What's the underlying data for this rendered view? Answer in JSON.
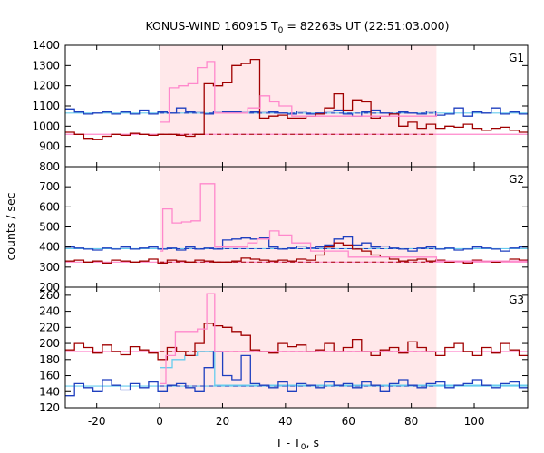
{
  "chart_data": {
    "type": "line",
    "title": {
      "prefix": "KONUS-WIND 160915 T",
      "sub": "0",
      "suffix": " = 82263s UT (22:51:03.000)"
    },
    "xlabel": {
      "prefix": "T - T",
      "sub": "0",
      "suffix": ", s"
    },
    "ylabel": "counts / sec",
    "xlim": [
      -30,
      117
    ],
    "xticks": [
      -20,
      0,
      20,
      40,
      60,
      80,
      100
    ],
    "shaded_interval": [
      0,
      88
    ],
    "colors": {
      "red": "#a00000",
      "blue": "#1f3fbf",
      "pink": "#ff88cc",
      "cyan": "#66ccee",
      "shade": "#ffe8ea"
    },
    "panels": [
      {
        "name": "G1",
        "ylim": [
          800,
          1400
        ],
        "yticks": [
          800,
          900,
          1000,
          1100,
          1200,
          1300,
          1400
        ],
        "bg_red": 960,
        "bg_blue": 1065,
        "bin": 2.944,
        "red": [
          970,
          960,
          940,
          935,
          950,
          960,
          955,
          965,
          960,
          955,
          960,
          960,
          955,
          950,
          960,
          1210,
          1200,
          1215,
          1300,
          1310,
          1330,
          1040,
          1050,
          1055,
          1040,
          1040,
          1050,
          1060,
          1090,
          1160,
          1080,
          1130,
          1120,
          1040,
          1050,
          1060,
          1000,
          1020,
          990,
          1010,
          990,
          1000,
          995,
          1010,
          990,
          980,
          990,
          995,
          980,
          970,
          975,
          985,
          990,
          970,
          965,
          975,
          980,
          990,
          985,
          980,
          960,
          975,
          970,
          980,
          990,
          950,
          980,
          975,
          990,
          985,
          980,
          990,
          1000,
          970,
          980,
          990,
          980,
          990,
          985,
          990
        ],
        "blue": [
          1085,
          1070,
          1060,
          1065,
          1070,
          1060,
          1070,
          1060,
          1080,
          1060,
          1070,
          1065,
          1090,
          1070,
          1075,
          1060,
          1075,
          1070,
          1070,
          1075,
          1070,
          1075,
          1070,
          1065,
          1060,
          1075,
          1060,
          1065,
          1075,
          1080,
          1060,
          1050,
          1070,
          1080,
          1065,
          1060,
          1070,
          1065,
          1060,
          1075,
          1055,
          1060,
          1090,
          1050,
          1070,
          1065,
          1090,
          1060,
          1070,
          1060,
          1090,
          1050,
          1060,
          1080,
          1065,
          1075,
          1050,
          1060,
          1070,
          1080,
          1065,
          1060,
          1095,
          1060,
          1050,
          1065,
          1060,
          1070,
          1065,
          1060,
          1060,
          1065,
          1070,
          1060,
          1065,
          1060,
          1065,
          1070,
          1060,
          1060
        ],
        "pink": [
          [
            0,
            1020
          ],
          [
            3,
            1190
          ],
          [
            6,
            1200
          ],
          [
            9,
            1210
          ],
          [
            12,
            1290
          ],
          [
            15,
            1320
          ],
          [
            17.5,
            1065
          ],
          [
            25,
            1065
          ],
          [
            28,
            1090
          ],
          [
            32,
            1150
          ],
          [
            35,
            1120
          ],
          [
            38,
            1100
          ],
          [
            42,
            1050
          ],
          [
            48,
            1050
          ],
          [
            88,
            1065
          ]
        ]
      },
      {
        "name": "G2",
        "ylim": [
          200,
          800
        ],
        "yticks": [
          200,
          300,
          400,
          500,
          600,
          700
        ],
        "bg_red": 325,
        "bg_blue": 392,
        "bin": 2.944,
        "red": [
          330,
          335,
          325,
          330,
          320,
          335,
          330,
          325,
          330,
          340,
          320,
          335,
          330,
          325,
          335,
          330,
          325,
          325,
          330,
          345,
          340,
          335,
          330,
          335,
          330,
          340,
          335,
          360,
          400,
          420,
          410,
          390,
          380,
          360,
          350,
          340,
          330,
          335,
          340,
          330,
          335,
          325,
          330,
          320,
          335,
          330,
          325,
          330,
          340,
          335,
          330,
          325,
          330,
          335,
          330,
          325,
          330,
          320,
          335,
          330,
          325,
          330,
          320,
          335,
          330,
          325,
          330,
          335,
          330,
          325,
          320,
          330,
          335,
          330,
          325,
          330,
          335,
          320,
          330,
          335
        ],
        "blue": [
          400,
          395,
          390,
          385,
          395,
          390,
          400,
          390,
          395,
          400,
          390,
          395,
          385,
          400,
          390,
          395,
          390,
          435,
          440,
          445,
          440,
          445,
          400,
          390,
          395,
          405,
          395,
          400,
          410,
          440,
          450,
          410,
          420,
          400,
          405,
          395,
          390,
          380,
          395,
          400,
          390,
          395,
          385,
          390,
          400,
          395,
          390,
          380,
          395,
          400,
          390,
          395,
          385,
          400,
          390,
          395,
          390,
          385,
          400,
          390,
          395,
          385,
          400,
          390,
          395,
          390,
          400,
          390,
          395,
          385,
          395,
          390,
          400,
          390,
          395,
          390,
          395,
          385,
          390,
          395
        ],
        "pink": [
          [
            0,
            380
          ],
          [
            1,
            590
          ],
          [
            4,
            520
          ],
          [
            7,
            525
          ],
          [
            10,
            530
          ],
          [
            13,
            715
          ],
          [
            17.5,
            400
          ],
          [
            28,
            420
          ],
          [
            31,
            440
          ],
          [
            35,
            480
          ],
          [
            38,
            460
          ],
          [
            42,
            420
          ],
          [
            48,
            380
          ],
          [
            60,
            350
          ],
          [
            88,
            330
          ],
          [
            117,
            335
          ]
        ]
      },
      {
        "name": "G3",
        "ylim": [
          120,
          270
        ],
        "yticks": [
          120,
          140,
          160,
          180,
          200,
          220,
          240,
          260
        ],
        "bg_red": 190,
        "bg_blue": 147,
        "bin": 2.944,
        "red": [
          192,
          200,
          195,
          188,
          198,
          190,
          186,
          196,
          192,
          188,
          180,
          195,
          190,
          185,
          200,
          225,
          222,
          220,
          215,
          210,
          192,
          190,
          188,
          200,
          196,
          198,
          190,
          192,
          200,
          190,
          195,
          205,
          190,
          185,
          192,
          195,
          188,
          202,
          195,
          190,
          185,
          195,
          200,
          190,
          185,
          195,
          188,
          200,
          192,
          185,
          190,
          195,
          198,
          185,
          190,
          200,
          195,
          188,
          190,
          198,
          192,
          185,
          190,
          196,
          200,
          188,
          192,
          195,
          188,
          190,
          200,
          185,
          195,
          192,
          188,
          190,
          196,
          188,
          195,
          192
        ],
        "blue": [
          135,
          150,
          145,
          140,
          155,
          148,
          142,
          150,
          145,
          152,
          140,
          148,
          150,
          145,
          140,
          170,
          190,
          160,
          155,
          185,
          150,
          148,
          145,
          152,
          140,
          150,
          148,
          145,
          152,
          148,
          150,
          145,
          152,
          148,
          140,
          150,
          155,
          148,
          145,
          150,
          152,
          145,
          148,
          150,
          155,
          148,
          145,
          150,
          152,
          145,
          148,
          150,
          140,
          155,
          148,
          145,
          150,
          152,
          145,
          148,
          150,
          140,
          155,
          148,
          145,
          150,
          152,
          145,
          148,
          150,
          145,
          152,
          148,
          140,
          150,
          148,
          145,
          152,
          148,
          150
        ],
        "pink": [
          [
            0,
            150
          ],
          [
            2,
            185
          ],
          [
            5,
            215
          ],
          [
            8,
            215
          ],
          [
            12,
            218
          ],
          [
            15,
            262
          ],
          [
            17.5,
            190
          ],
          [
            88,
            190
          ]
        ],
        "cyan": [
          [
            0,
            170
          ],
          [
            4,
            180
          ],
          [
            8,
            185
          ],
          [
            12,
            190
          ],
          [
            17.5,
            148
          ],
          [
            117,
            148
          ]
        ]
      }
    ]
  }
}
